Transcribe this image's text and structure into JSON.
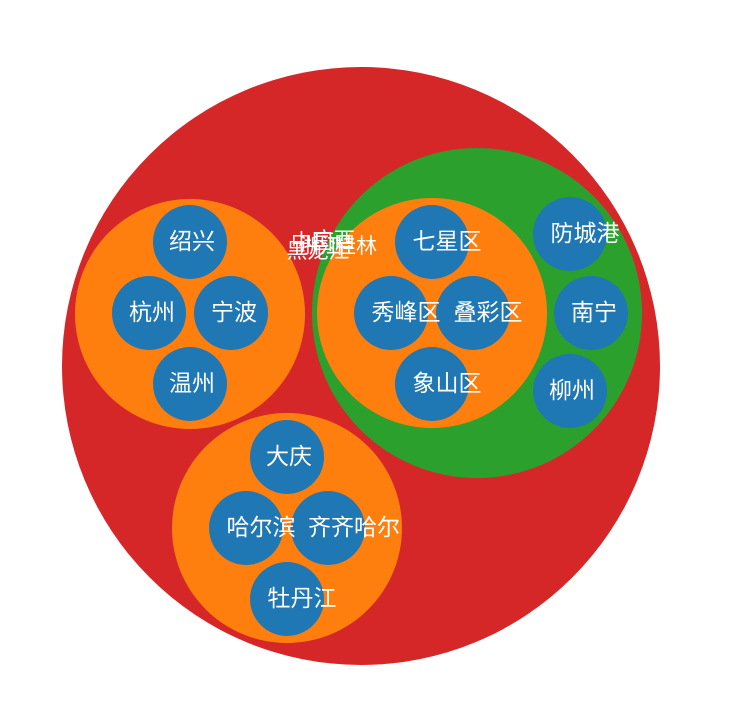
{
  "colors": {
    "root": "#d62728",
    "province_green": "#2ca02c",
    "province_orange": "#ff7f0e",
    "city": "#1f77b4",
    "label": "#ffffff"
  },
  "tree": {
    "name": "",
    "children": [
      {
        "name": "浙江",
        "cities": [
          "绍兴",
          "杭州",
          "宁波",
          "温州"
        ]
      },
      {
        "name": "广西",
        "children": [
          {
            "name": "桂林",
            "districts": [
              "七星区",
              "秀峰区",
              "叠彩区",
              "象山区"
            ]
          }
        ],
        "cities": [
          "防城港",
          "南宁",
          "柳州"
        ]
      },
      {
        "name": "黑龙江",
        "cities": [
          "大庆",
          "哈尔滨",
          "齐齐哈尔",
          "牡丹江"
        ]
      }
    ]
  },
  "overlap_labels": [
    "中国",
    "浙江",
    "广西",
    "黑龙江",
    "桂林"
  ]
}
